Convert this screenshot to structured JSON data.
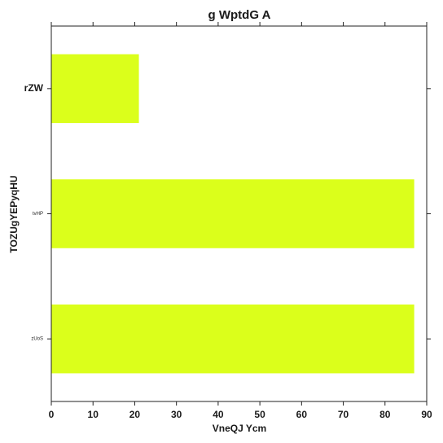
{
  "chart_data": {
    "type": "bar",
    "orientation": "horizontal",
    "title": "g    WptdG A",
    "xlabel": "VneQJ  Ycm",
    "ylabel": "TOZUgYEPyqHU",
    "categories": [
      "rZW",
      "tvHP",
      "zUoS"
    ],
    "values": [
      21,
      87,
      87
    ],
    "xlim": [
      0,
      90
    ],
    "xticks": [
      0,
      10,
      20,
      30,
      40,
      50,
      60,
      70,
      80,
      90
    ],
    "bar_color": "#dbff1b",
    "grid": false,
    "legend": "none"
  }
}
